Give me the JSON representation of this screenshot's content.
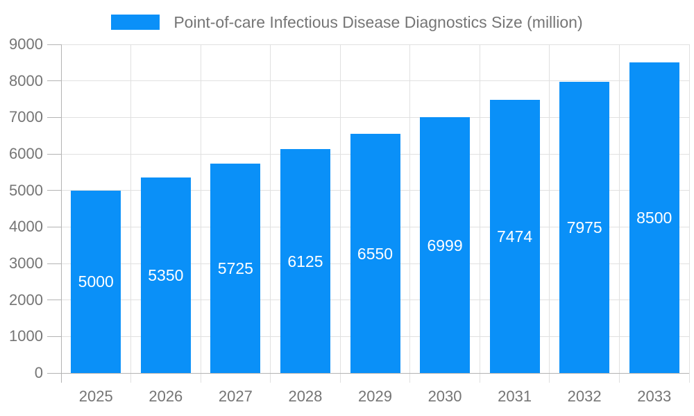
{
  "legend": {
    "label": "Point-of-care Infectious Disease Diagnostics Size (million)"
  },
  "chart_data": {
    "type": "bar",
    "title": "Point-of-care Infectious Disease Diagnostics Size (million)",
    "categories": [
      "2025",
      "2026",
      "2027",
      "2028",
      "2029",
      "2030",
      "2031",
      "2032",
      "2033"
    ],
    "values": [
      5000,
      5350,
      5725,
      6125,
      6550,
      6999,
      7474,
      7975,
      8500
    ],
    "value_labels": [
      "5000",
      "5350",
      "5725",
      "6125",
      "6550",
      "6999",
      "7474",
      "7975",
      "8500"
    ],
    "xlabel": "",
    "ylabel": "",
    "ylim": [
      0,
      9000
    ],
    "ytick_step": 1000,
    "ytick_labels": [
      "0",
      "1000",
      "2000",
      "3000",
      "4000",
      "5000",
      "6000",
      "7000",
      "8000",
      "9000"
    ],
    "grid": true,
    "legend_position": "top",
    "colors": {
      "bar": "#0a90f8",
      "grid": "#e0e0e0",
      "axis": "#b3b3b3",
      "tick_text": "#757575",
      "value_text": "#ffffff",
      "legend_text": "#757575",
      "background": "#ffffff"
    }
  }
}
